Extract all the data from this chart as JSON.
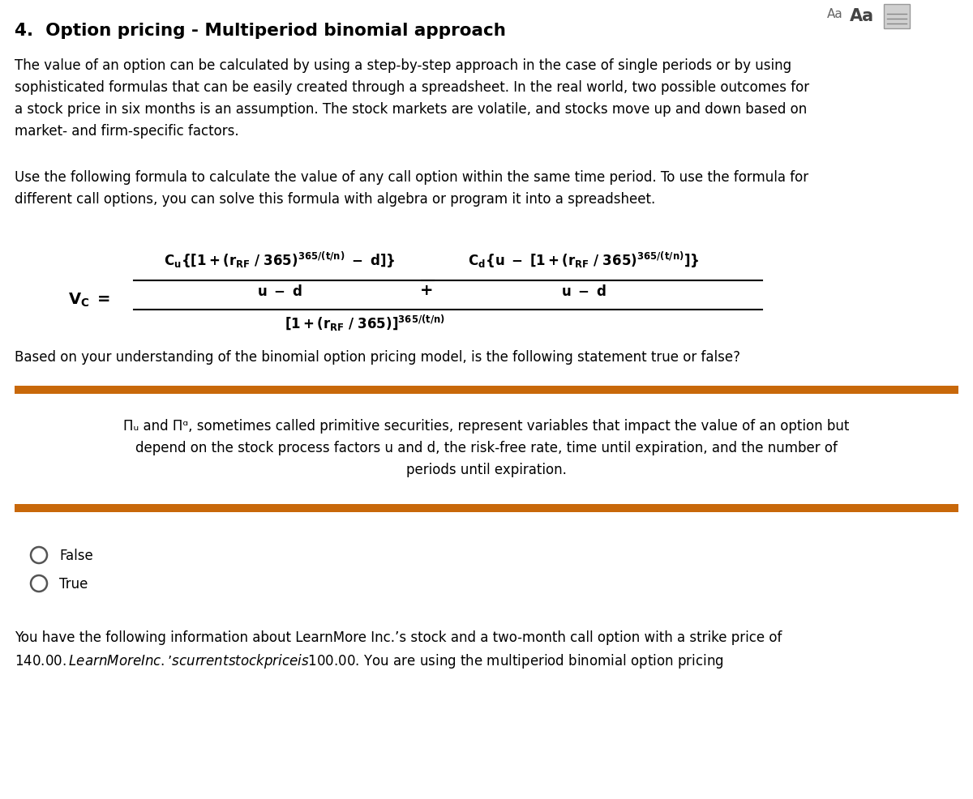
{
  "title": "4.  Option pricing - Multiperiod binomial approach",
  "bg_color": "#ffffff",
  "text_color": "#000000",
  "orange_bar_color": "#C8680A",
  "para1_lines": [
    "The value of an option can be calculated by using a step-by-step approach in the case of single periods or by using",
    "sophisticated formulas that can be easily created through a spreadsheet. In the real world, two possible outcomes for",
    "a stock price in six months is an assumption. The stock markets are volatile, and stocks move up and down based on",
    "market- and firm-specific factors."
  ],
  "para2_lines": [
    "Use the following formula to calculate the value of any call option within the same time period. To use the formula for",
    "different call options, you can solve this formula with algebra or program it into a spreadsheet."
  ],
  "question_text": "Based on your understanding of the binomial option pricing model, is the following statement true or false?",
  "stmt_lines": [
    "Πu and Πd, sometimes called primitive securities, represent variables that impact the value of an option but",
    "depend on the stock process factors u and d, the risk-free rate, time until expiration, and the number of",
    "periods until expiration."
  ],
  "radio_false": "False",
  "radio_true": "True",
  "bottom_text1": "You have the following information about LearnMore Inc.’s stock and a two-month call option with a strike price of",
  "bottom_text2": "$140.00. LearnMore Inc.’s current stock price is $100.00. You are using the multiperiod binomial option pricing",
  "aa_small": "Aa",
  "aa_large": "Aa"
}
